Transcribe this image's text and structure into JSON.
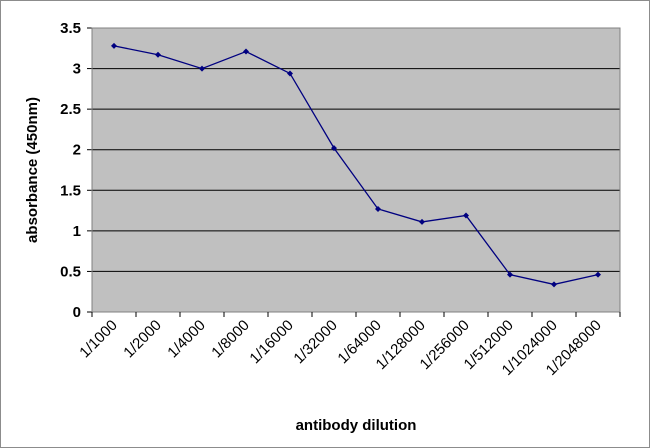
{
  "chart_data": {
    "type": "line",
    "title": "",
    "xlabel": "antibody dilution",
    "ylabel": "absorbance (450nm)",
    "categories": [
      "1/1000",
      "1/2000",
      "1/4000",
      "1/8000",
      "1/16000",
      "1/32000",
      "1/64000",
      "1/128000",
      "1/256000",
      "1/512000",
      "1/1024000",
      "1/2048000"
    ],
    "y_ticks": [
      "0",
      "0.5",
      "1",
      "1.5",
      "2",
      "2.5",
      "3",
      "3.5"
    ],
    "ylim": [
      0,
      3.5
    ],
    "grid": true,
    "legend": "none",
    "series": [
      {
        "values": [
          3.28,
          3.17,
          3.0,
          3.21,
          2.94,
          2.02,
          1.27,
          1.11,
          1.19,
          0.46,
          0.34,
          0.46
        ]
      }
    ],
    "colors": {
      "plot_background": "#c0c0c0",
      "line": "#000080",
      "gridline": "#000000"
    }
  }
}
